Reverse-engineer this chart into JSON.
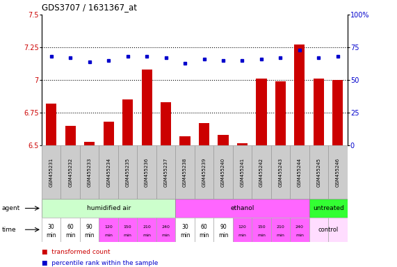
{
  "title": "GDS3707 / 1631367_at",
  "samples": [
    "GSM455231",
    "GSM455232",
    "GSM455233",
    "GSM455234",
    "GSM455235",
    "GSM455236",
    "GSM455237",
    "GSM455238",
    "GSM455239",
    "GSM455240",
    "GSM455241",
    "GSM455242",
    "GSM455243",
    "GSM455244",
    "GSM455245",
    "GSM455246"
  ],
  "transformed_count": [
    6.82,
    6.65,
    6.53,
    6.68,
    6.85,
    7.08,
    6.83,
    6.57,
    6.67,
    6.58,
    6.52,
    7.01,
    6.99,
    7.27,
    7.01,
    7.0
  ],
  "percentile_rank": [
    68,
    67,
    64,
    65,
    68,
    68,
    67,
    63,
    66,
    65,
    65,
    66,
    67,
    73,
    67,
    68
  ],
  "ylim_left": [
    6.5,
    7.5
  ],
  "ylim_right": [
    0,
    100
  ],
  "yticks_left": [
    6.5,
    6.75,
    7.0,
    7.25,
    7.5
  ],
  "yticks_right": [
    0,
    25,
    50,
    75,
    100
  ],
  "ytick_labels_left": [
    "6.5",
    "6.75",
    "7",
    "7.25",
    "7.5"
  ],
  "ytick_labels_right": [
    "0",
    "25",
    "50",
    "75",
    "100%"
  ],
  "bar_color": "#cc0000",
  "dot_color": "#0000cc",
  "agent_groups": [
    {
      "label": "humidified air",
      "start": 0,
      "end": 7,
      "color": "#ccffcc"
    },
    {
      "label": "ethanol",
      "start": 7,
      "end": 14,
      "color": "#ff66ff"
    },
    {
      "label": "untreated",
      "start": 14,
      "end": 16,
      "color": "#33ff33"
    }
  ],
  "time_labels_1": [
    "30",
    "60",
    "90",
    "120",
    "150",
    "210",
    "240",
    "30",
    "60",
    "90",
    "120",
    "150",
    "210",
    "240",
    "",
    ""
  ],
  "time_labels_2": [
    "min",
    "min",
    "min",
    "min",
    "min",
    "min",
    "min",
    "min",
    "min",
    "min",
    "min",
    "min",
    "min",
    "min",
    "",
    ""
  ],
  "time_colors": [
    "#ffffff",
    "#ffffff",
    "#ffffff",
    "#ff66ff",
    "#ff66ff",
    "#ff66ff",
    "#ff66ff",
    "#ffffff",
    "#ffffff",
    "#ffffff",
    "#ff66ff",
    "#ff66ff",
    "#ff66ff",
    "#ff66ff",
    "#ffddff",
    "#ffddff"
  ],
  "time_small": [
    false,
    false,
    false,
    true,
    true,
    true,
    true,
    false,
    false,
    false,
    true,
    true,
    true,
    true,
    false,
    false
  ],
  "time_row_label": "time",
  "agent_row_label": "agent",
  "control_label": "control",
  "legend_bar_label": "transformed count",
  "legend_dot_label": "percentile rank within the sample",
  "bg_color": "#ffffff",
  "sample_box_color": "#cccccc",
  "sample_box_edge": "#999999"
}
